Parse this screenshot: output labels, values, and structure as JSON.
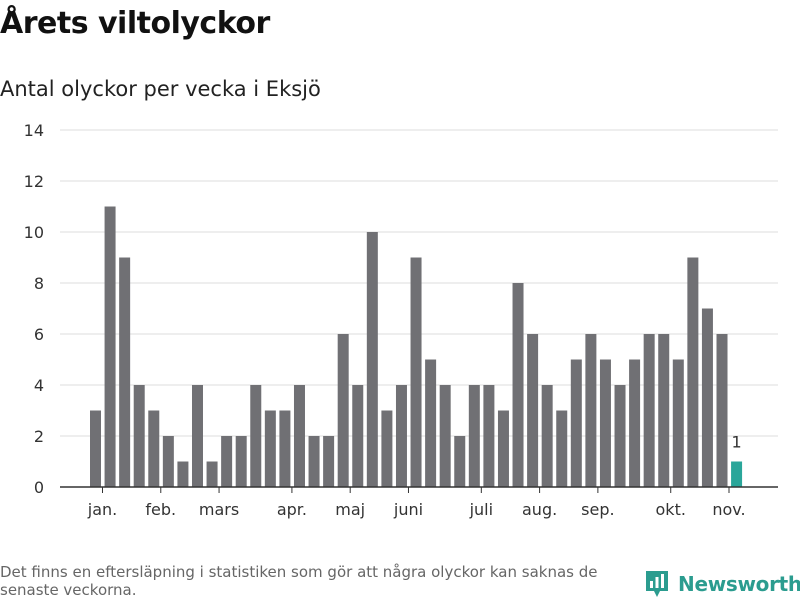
{
  "header": {
    "title": "Årets viltolyckor",
    "subtitle": "Antal olyckor per vecka i Eksjö"
  },
  "footer": {
    "note": "Det finns en eftersläpning i statistiken som gör att några olyckor kan saknas de senaste veckorna.",
    "brand": "Newsworthy",
    "brand_icon": "newsworthy-logo-icon",
    "brand_color": "#2b9c8f"
  },
  "chart_data": {
    "type": "bar",
    "title": "Årets viltolyckor",
    "subtitle": "Antal olyckor per vecka i Eksjö",
    "xlabel": "",
    "ylabel": "",
    "ylim": [
      0,
      14
    ],
    "yticks": [
      0,
      2,
      4,
      6,
      8,
      10,
      12,
      14
    ],
    "grid": true,
    "legend": "none",
    "colors": {
      "bar": "#707074",
      "highlight": "#2aa69a",
      "grid": "#dddddd",
      "axis": "#333333"
    },
    "weeks": [
      2,
      3,
      4,
      5,
      6,
      7,
      8,
      9,
      10,
      11,
      12,
      13,
      14,
      15,
      16,
      17,
      18,
      19,
      20,
      21,
      22,
      23,
      24,
      25,
      26,
      27,
      28,
      29,
      30,
      31,
      32,
      33,
      34,
      35,
      36,
      37,
      38,
      39,
      40,
      41,
      42,
      43,
      44,
      45
    ],
    "values": [
      3,
      11,
      9,
      4,
      3,
      2,
      1,
      4,
      1,
      2,
      2,
      4,
      3,
      3,
      4,
      2,
      2,
      6,
      4,
      10,
      3,
      4,
      9,
      5,
      4,
      2,
      4,
      4,
      3,
      8,
      6,
      4,
      3,
      5,
      6,
      5,
      4,
      5,
      6,
      6,
      5,
      9,
      7,
      6
    ],
    "highlight": {
      "week": 46,
      "value": 1,
      "label": "1"
    },
    "month_labels": [
      {
        "label": "jan.",
        "week": 2.5
      },
      {
        "label": "feb.",
        "week": 6.5
      },
      {
        "label": "mars",
        "week": 10.5
      },
      {
        "label": "apr.",
        "week": 15.5
      },
      {
        "label": "maj",
        "week": 19.5
      },
      {
        "label": "juni",
        "week": 23.5
      },
      {
        "label": "juli",
        "week": 28.5
      },
      {
        "label": "aug.",
        "week": 32.5
      },
      {
        "label": "sep.",
        "week": 36.5
      },
      {
        "label": "okt.",
        "week": 41.5
      },
      {
        "label": "nov.",
        "week": 45.5
      }
    ]
  }
}
